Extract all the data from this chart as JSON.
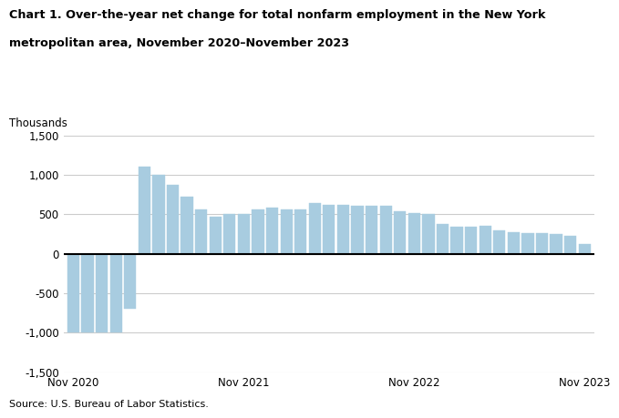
{
  "title_line1": "Chart 1. Over-the-year net change for total nonfarm employment in the New York",
  "title_line2": "metropolitan area, November 2020–November 2023",
  "ylabel": "Thousands",
  "source": "Source: U.S. Bureau of Labor Statistics.",
  "bar_color": "#a8cce0",
  "bar_edge_color": "#a8cce0",
  "ylim": [
    -1500,
    1500
  ],
  "yticks": [
    -1500,
    -1000,
    -500,
    0,
    500,
    1000,
    1500
  ],
  "ytick_labels": [
    "-1,500",
    "-1,000",
    "-500",
    "0",
    "500",
    "1,000",
    "1,500"
  ],
  "xtick_labels": [
    "Nov 2020",
    "Nov 2021",
    "Nov 2022",
    "Nov 2023"
  ],
  "xtick_positions": [
    0,
    12,
    24,
    36
  ],
  "zero_line_color": "#000000",
  "grid_color": "#cccccc",
  "values": [
    -1000,
    -1000,
    -1000,
    -1000,
    -700,
    1100,
    1000,
    875,
    725,
    560,
    475,
    510,
    505,
    560,
    590,
    565,
    560,
    640,
    620,
    615,
    610,
    610,
    610,
    540,
    520,
    505,
    375,
    345,
    345,
    350,
    295,
    270,
    265,
    265,
    250,
    230,
    120
  ]
}
